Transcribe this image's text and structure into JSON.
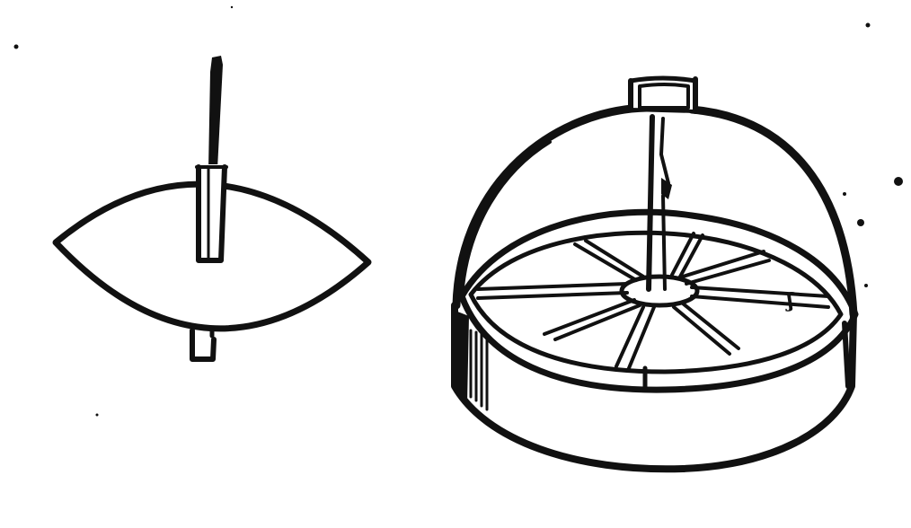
{
  "figure": {
    "left_device": {
      "label": "",
      "parts": [
        "pivot-needle",
        "needle-socket-tube",
        "lens-shaped-card",
        "bottom-pin"
      ]
    },
    "right_device": {
      "label": "",
      "parts": [
        "top-cap",
        "dome-cover",
        "needle",
        "ring-rim",
        "compass-card",
        "eight-rays",
        "center-hub",
        "round-box-base"
      ],
      "card_mark": "ʃ",
      "ray_count": 8
    },
    "ink_color": "#111111",
    "paper_color": "#ffffff"
  }
}
